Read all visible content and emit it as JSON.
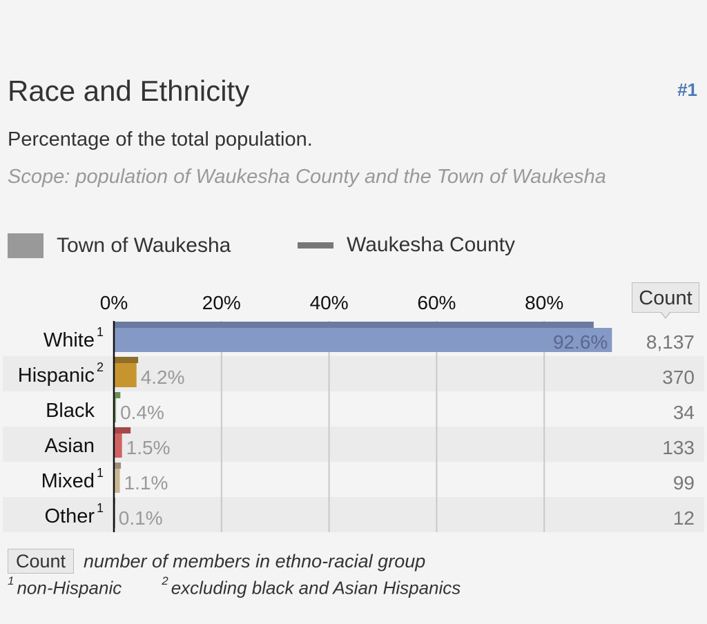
{
  "header": {
    "title": "Race and Ethnicity",
    "rank": "#1",
    "subtitle": "Percentage of the total population.",
    "scope": "Scope: population of Waukesha County and the Town of Waukesha"
  },
  "legend": {
    "town_label": "Town of Waukesha",
    "county_label": "Waukesha County"
  },
  "count_header": "Count",
  "footnotes": {
    "count_label": "Count",
    "count_desc": "number of members in ethno-racial group",
    "note1_mark": "1",
    "note1_text": "non-Hispanic",
    "note2_mark": "2",
    "note2_text": "excluding black and Asian Hispanics"
  },
  "chart_data": {
    "type": "bar",
    "orientation": "horizontal",
    "x_ticks": [
      "0%",
      "20%",
      "40%",
      "60%",
      "80%"
    ],
    "xlim": [
      0,
      100
    ],
    "grid": true,
    "series": [
      {
        "name": "Town of Waukesha",
        "style": "thick bar"
      },
      {
        "name": "Waukesha County",
        "style": "thin bar"
      }
    ],
    "rows": [
      {
        "category": "White",
        "mark": "1",
        "town_pct": 92.6,
        "town_label": "92.6%",
        "county_pct": 89.2,
        "count": "8,137",
        "town_color": "#8599c7",
        "county_color": "#6b7aa0"
      },
      {
        "category": "Hispanic",
        "mark": "2",
        "town_pct": 4.2,
        "town_label": "4.2%",
        "county_pct": 4.5,
        "count": "370",
        "town_color": "#c7952f",
        "county_color": "#8f6e2a"
      },
      {
        "category": "Black",
        "mark": "",
        "town_pct": 0.4,
        "town_label": "0.4%",
        "county_pct": 1.2,
        "count": "34",
        "town_color": "#8bb070",
        "county_color": "#6a8f57"
      },
      {
        "category": "Asian",
        "mark": "",
        "town_pct": 1.5,
        "town_label": "1.5%",
        "county_pct": 3.1,
        "count": "133",
        "town_color": "#d06262",
        "county_color": "#a44848"
      },
      {
        "category": "Mixed",
        "mark": "1",
        "town_pct": 1.1,
        "town_label": "1.1%",
        "county_pct": 1.3,
        "count": "99",
        "town_color": "#c9b593",
        "county_color": "#9a8e7c"
      },
      {
        "category": "Other",
        "mark": "1",
        "town_pct": 0.1,
        "town_label": "0.1%",
        "county_pct": 0.2,
        "count": "12",
        "town_color": "#9ba9b4",
        "county_color": "#7e8a94"
      }
    ]
  }
}
